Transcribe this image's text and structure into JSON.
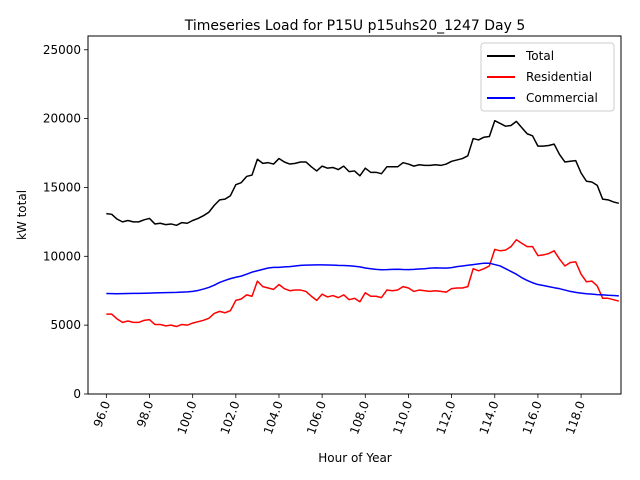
{
  "chart_data": {
    "type": "line",
    "title": "Timeseries Load for P15U p15uhs20_1247  Day 5",
    "xlabel": "Hour of Year",
    "ylabel": "kW total",
    "xlim": [
      95.15,
      119.85
    ],
    "ylim": [
      0,
      26000
    ],
    "xticks": [
      96,
      98,
      100,
      102,
      104,
      106,
      108,
      110,
      112,
      114,
      116,
      118
    ],
    "xtick_labels": [
      "96.0",
      "98.0",
      "100.0",
      "102.0",
      "104.0",
      "106.0",
      "108.0",
      "110.0",
      "112.0",
      "114.0",
      "116.0",
      "118.0"
    ],
    "yticks": [
      0,
      5000,
      10000,
      15000,
      20000,
      25000
    ],
    "ytick_labels": [
      "0",
      "5000",
      "10000",
      "15000",
      "20000",
      "25000"
    ],
    "legend_position": "top-right",
    "x": [
      96.0,
      96.25,
      96.5,
      96.75,
      97.0,
      97.25,
      97.5,
      97.75,
      98.0,
      98.25,
      98.5,
      98.75,
      99.0,
      99.25,
      99.5,
      99.75,
      100.0,
      100.25,
      100.5,
      100.75,
      101.0,
      101.25,
      101.5,
      101.75,
      102.0,
      102.25,
      102.5,
      102.75,
      103.0,
      103.25,
      103.5,
      103.75,
      104.0,
      104.25,
      104.5,
      104.75,
      105.0,
      105.25,
      105.5,
      105.75,
      106.0,
      106.25,
      106.5,
      106.75,
      107.0,
      107.25,
      107.5,
      107.75,
      108.0,
      108.25,
      108.5,
      108.75,
      109.0,
      109.25,
      109.5,
      109.75,
      110.0,
      110.25,
      110.5,
      110.75,
      111.0,
      111.25,
      111.5,
      111.75,
      112.0,
      112.25,
      112.5,
      112.75,
      113.0,
      113.25,
      113.5,
      113.75,
      114.0,
      114.25,
      114.5,
      114.75,
      115.0,
      115.25,
      115.5,
      115.75,
      116.0,
      116.25,
      116.5,
      116.75,
      117.0,
      117.25,
      117.5,
      117.75,
      118.0,
      118.25,
      118.5,
      118.75,
      119.0,
      119.25,
      119.5,
      119.75
    ],
    "series": [
      {
        "name": "Total",
        "color": "#000000",
        "values": [
          13100,
          13050,
          12700,
          12500,
          12600,
          12500,
          12500,
          12650,
          12750,
          12350,
          12400,
          12300,
          12350,
          12250,
          12450,
          12400,
          12600,
          12750,
          12950,
          13200,
          13700,
          14100,
          14150,
          14400,
          15200,
          15350,
          15800,
          15900,
          17050,
          16750,
          16800,
          16700,
          17100,
          16850,
          16700,
          16750,
          16850,
          16850,
          16500,
          16200,
          16550,
          16400,
          16450,
          16300,
          16550,
          16150,
          16200,
          15850,
          16400,
          16100,
          16100,
          16000,
          16500,
          16500,
          16500,
          16800,
          16700,
          16550,
          16650,
          16600,
          16600,
          16650,
          16600,
          16700,
          16900,
          17000,
          17100,
          17300,
          18550,
          18450,
          18650,
          18700,
          19850,
          19650,
          19450,
          19500,
          19800,
          19350,
          18900,
          18750,
          18000,
          18000,
          18050,
          18150,
          17400,
          16850,
          16900,
          16950,
          16050,
          15450,
          15400,
          15150,
          14150,
          14100,
          13950,
          13850
        ]
      },
      {
        "name": "Residential",
        "color": "#ff0000",
        "values": [
          5800,
          5800,
          5450,
          5200,
          5300,
          5200,
          5200,
          5350,
          5400,
          5050,
          5050,
          4950,
          5000,
          4900,
          5050,
          5000,
          5150,
          5250,
          5350,
          5500,
          5850,
          6000,
          5900,
          6050,
          6800,
          6900,
          7200,
          7100,
          8200,
          7800,
          7700,
          7600,
          7950,
          7650,
          7500,
          7550,
          7550,
          7450,
          7100,
          6800,
          7250,
          7050,
          7150,
          7000,
          7200,
          6850,
          6950,
          6700,
          7350,
          7100,
          7100,
          7000,
          7550,
          7500,
          7550,
          7800,
          7700,
          7450,
          7550,
          7500,
          7450,
          7500,
          7450,
          7400,
          7650,
          7700,
          7700,
          7800,
          9100,
          8950,
          9100,
          9300,
          10500,
          10400,
          10450,
          10700,
          11200,
          10950,
          10700,
          10700,
          10050,
          10100,
          10200,
          10400,
          9800,
          9300,
          9550,
          9600,
          8700,
          8150,
          8200,
          7850,
          6950,
          6950,
          6850,
          6750
        ]
      },
      {
        "name": "Commercial",
        "color": "#0000ff",
        "values": [
          7300,
          7290,
          7285,
          7290,
          7300,
          7310,
          7310,
          7320,
          7330,
          7340,
          7350,
          7360,
          7370,
          7380,
          7400,
          7420,
          7450,
          7520,
          7620,
          7740,
          7900,
          8100,
          8250,
          8380,
          8480,
          8560,
          8700,
          8850,
          8950,
          9050,
          9150,
          9200,
          9200,
          9230,
          9250,
          9300,
          9340,
          9360,
          9370,
          9375,
          9380,
          9370,
          9360,
          9340,
          9330,
          9310,
          9280,
          9230,
          9150,
          9100,
          9050,
          9020,
          9030,
          9050,
          9060,
          9040,
          9030,
          9050,
          9080,
          9100,
          9140,
          9160,
          9150,
          9140,
          9180,
          9250,
          9300,
          9350,
          9400,
          9450,
          9500,
          9500,
          9400,
          9300,
          9100,
          8900,
          8700,
          8450,
          8250,
          8080,
          7950,
          7880,
          7800,
          7720,
          7650,
          7550,
          7450,
          7380,
          7330,
          7280,
          7250,
          7220,
          7200,
          7170,
          7150,
          7130
        ]
      }
    ]
  }
}
